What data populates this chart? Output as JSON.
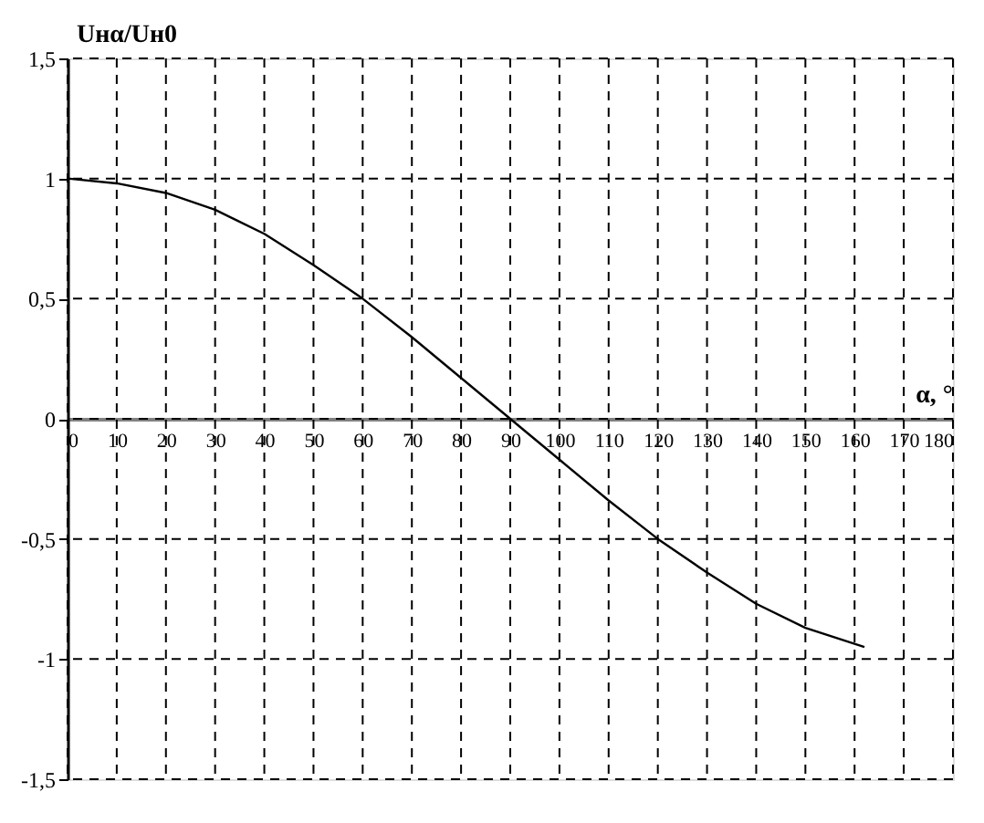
{
  "chart_data": {
    "type": "line",
    "xlabel": "α, °",
    "ylabel": "Uнα/Uн0",
    "series": [
      {
        "color": "#000000",
        "x": [
          0,
          10,
          20,
          30,
          40,
          50,
          60,
          70,
          80,
          90,
          100,
          110,
          120,
          130,
          140,
          150,
          162
        ],
        "values": [
          1,
          0.98,
          0.94,
          0.87,
          0.77,
          0.64,
          0.5,
          0.34,
          0.17,
          0,
          -0.17,
          -0.34,
          -0.5,
          -0.64,
          -0.77,
          -0.87,
          -0.95
        ]
      }
    ],
    "xlim": [
      0,
      180
    ],
    "xticks": [
      0,
      10,
      20,
      30,
      40,
      50,
      60,
      70,
      80,
      90,
      100,
      110,
      120,
      130,
      140,
      150,
      160,
      170,
      180
    ],
    "ylim": [
      -1.5,
      1.5
    ],
    "yticks": [
      {
        "value": -1.5,
        "label": "-1,5"
      },
      -1,
      {
        "value": -0.5,
        "label": "-0,5"
      },
      0,
      {
        "value": 0.5,
        "label": "0,5"
      },
      1,
      {
        "value": 1.5,
        "label": "1,5"
      }
    ],
    "grid": true,
    "marker": "none",
    "line_style": "solid"
  }
}
